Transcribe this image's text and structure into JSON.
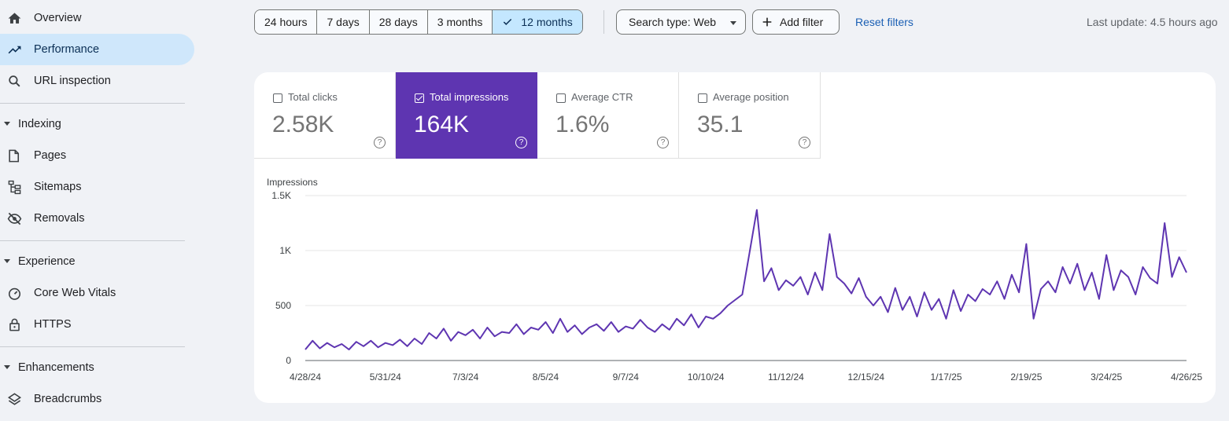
{
  "sidebar": {
    "overview": {
      "label": "Overview",
      "icon": "home-icon"
    },
    "performance": {
      "label": "Performance",
      "icon": "trending-up-icon"
    },
    "url_inspection": {
      "label": "URL inspection",
      "icon": "search-icon"
    },
    "indexing": {
      "label": "Indexing"
    },
    "pages": {
      "label": "Pages",
      "icon": "pages-icon"
    },
    "sitemaps": {
      "label": "Sitemaps",
      "icon": "sitemap-icon"
    },
    "removals": {
      "label": "Removals",
      "icon": "eye-off-icon"
    },
    "experience": {
      "label": "Experience"
    },
    "core_web_vitals": {
      "label": "Core Web Vitals",
      "icon": "gauge-icon"
    },
    "https": {
      "label": "HTTPS",
      "icon": "lock-icon"
    },
    "enhancements": {
      "label": "Enhancements"
    },
    "breadcrumbs": {
      "label": "Breadcrumbs",
      "icon": "layers-icon"
    }
  },
  "toolbar": {
    "ranges": [
      "24 hours",
      "7 days",
      "28 days",
      "3 months",
      "12 months"
    ],
    "selected_range": "12 months",
    "search_type": "Search type: Web",
    "add_filter": "Add filter",
    "reset_filters": "Reset filters",
    "last_update": "Last update: 4.5 hours ago"
  },
  "metrics": {
    "clicks": {
      "label": "Total clicks",
      "value": "2.58K",
      "checked": false
    },
    "impressions": {
      "label": "Total impressions",
      "value": "164K",
      "checked": true
    },
    "ctr": {
      "label": "Average CTR",
      "value": "1.6%",
      "checked": false
    },
    "position": {
      "label": "Average position",
      "value": "35.1",
      "checked": false
    }
  },
  "colors": {
    "accent": "#5e35b1",
    "selected_range_bg": "#c4e7ff",
    "active_nav_bg": "#cfe7fb",
    "link": "#1a5fb4"
  },
  "chart_data": {
    "type": "line",
    "title": "",
    "ylabel": "Impressions",
    "xlabel": "",
    "ylim": [
      0,
      1500
    ],
    "yticks": [
      0,
      500,
      1000,
      1500
    ],
    "yticklabels": [
      "0",
      "500",
      "1K",
      "1.5K"
    ],
    "x_start": "2024-04-28",
    "x_end": "2025-04-26",
    "xticklabels": [
      "4/28/24",
      "5/31/24",
      "7/3/24",
      "8/5/24",
      "9/7/24",
      "10/10/24",
      "11/12/24",
      "12/15/24",
      "1/17/25",
      "2/19/25",
      "3/24/25",
      "4/26/25"
    ],
    "grid": true,
    "series": [
      {
        "color": "#5e35b1",
        "x": [
          "2024-04-28",
          "2024-05-01",
          "2024-05-04",
          "2024-05-07",
          "2024-05-10",
          "2024-05-13",
          "2024-05-16",
          "2024-05-19",
          "2024-05-22",
          "2024-05-25",
          "2024-05-28",
          "2024-05-31",
          "2024-06-03",
          "2024-06-06",
          "2024-06-09",
          "2024-06-12",
          "2024-06-15",
          "2024-06-18",
          "2024-06-21",
          "2024-06-24",
          "2024-06-27",
          "2024-06-30",
          "2024-07-03",
          "2024-07-06",
          "2024-07-09",
          "2024-07-12",
          "2024-07-15",
          "2024-07-18",
          "2024-07-21",
          "2024-07-24",
          "2024-07-27",
          "2024-07-30",
          "2024-08-02",
          "2024-08-05",
          "2024-08-08",
          "2024-08-11",
          "2024-08-14",
          "2024-08-17",
          "2024-08-20",
          "2024-08-23",
          "2024-08-26",
          "2024-08-29",
          "2024-09-01",
          "2024-09-04",
          "2024-09-07",
          "2024-09-10",
          "2024-09-13",
          "2024-09-16",
          "2024-09-19",
          "2024-09-22",
          "2024-09-25",
          "2024-09-28",
          "2024-10-01",
          "2024-10-04",
          "2024-10-07",
          "2024-10-10",
          "2024-10-13",
          "2024-10-16",
          "2024-10-19",
          "2024-10-22",
          "2024-10-25",
          "2024-10-28",
          "2024-10-31",
          "2024-11-03",
          "2024-11-06",
          "2024-11-09",
          "2024-11-12",
          "2024-11-15",
          "2024-11-18",
          "2024-11-21",
          "2024-11-24",
          "2024-11-27",
          "2024-11-30",
          "2024-12-03",
          "2024-12-06",
          "2024-12-09",
          "2024-12-12",
          "2024-12-15",
          "2024-12-18",
          "2024-12-21",
          "2024-12-24",
          "2024-12-27",
          "2024-12-30",
          "2025-01-02",
          "2025-01-05",
          "2025-01-08",
          "2025-01-11",
          "2025-01-14",
          "2025-01-17",
          "2025-01-20",
          "2025-01-23",
          "2025-01-26",
          "2025-01-29",
          "2025-02-01",
          "2025-02-04",
          "2025-02-07",
          "2025-02-10",
          "2025-02-13",
          "2025-02-16",
          "2025-02-19",
          "2025-02-22",
          "2025-02-25",
          "2025-02-28",
          "2025-03-03",
          "2025-03-06",
          "2025-03-09",
          "2025-03-12",
          "2025-03-15",
          "2025-03-18",
          "2025-03-21",
          "2025-03-24",
          "2025-03-27",
          "2025-03-30",
          "2025-04-02",
          "2025-04-05",
          "2025-04-08",
          "2025-04-11",
          "2025-04-14",
          "2025-04-17",
          "2025-04-20",
          "2025-04-23",
          "2025-04-26"
        ],
        "y": [
          100,
          180,
          110,
          160,
          120,
          150,
          100,
          170,
          130,
          180,
          120,
          160,
          140,
          190,
          130,
          200,
          150,
          250,
          200,
          290,
          180,
          260,
          230,
          280,
          200,
          300,
          220,
          260,
          250,
          330,
          240,
          300,
          280,
          350,
          250,
          380,
          260,
          320,
          240,
          300,
          330,
          270,
          350,
          260,
          310,
          290,
          370,
          300,
          260,
          330,
          280,
          380,
          320,
          420,
          300,
          400,
          380,
          430,
          500,
          550,
          600,
          980,
          1370,
          720,
          840,
          640,
          730,
          680,
          760,
          600,
          800,
          640,
          1150,
          760,
          700,
          610,
          750,
          580,
          500,
          580,
          440,
          660,
          460,
          580,
          400,
          620,
          460,
          560,
          380,
          640,
          450,
          600,
          540,
          650,
          600,
          720,
          560,
          780,
          620,
          1060,
          380,
          650,
          720,
          620,
          850,
          700,
          880,
          640,
          800,
          560,
          960,
          640,
          820,
          760,
          600,
          850,
          750,
          700,
          1250,
          760,
          940,
          800
        ]
      }
    ]
  }
}
